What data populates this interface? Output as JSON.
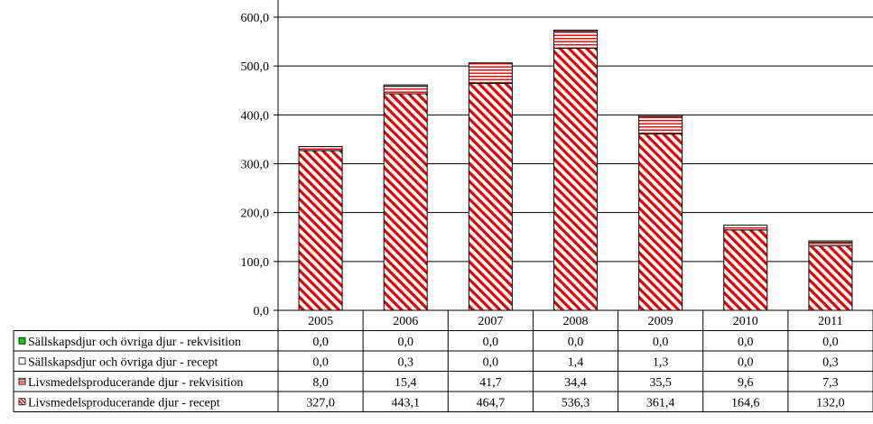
{
  "chart_data": {
    "type": "bar",
    "stacked": true,
    "categories": [
      "2005",
      "2006",
      "2007",
      "2008",
      "2009",
      "2010",
      "2011"
    ],
    "ylim": [
      0,
      600
    ],
    "yticks": [
      "0,0",
      "100,0",
      "200,0",
      "300,0",
      "400,0",
      "500,0",
      "600,0"
    ],
    "grid": true,
    "legend": "data-table-left",
    "series": [
      {
        "name": "Livsmedelsproducerande djur - recept",
        "values": [
          327.0,
          443.1,
          464.7,
          536.3,
          361.4,
          164.6,
          132.0
        ],
        "labels": [
          "327,0",
          "443,1",
          "464,7",
          "536,3",
          "361,4",
          "164,6",
          "132,0"
        ],
        "color": "#e00000",
        "pattern": "diagonal-hatch"
      },
      {
        "name": "Livsmedelsproducerande djur - rekvisition",
        "values": [
          8.0,
          15.4,
          41.7,
          34.4,
          35.5,
          9.6,
          7.3
        ],
        "labels": [
          "8,0",
          "15,4",
          "41,7",
          "34,4",
          "35,5",
          "9,6",
          "7,3"
        ],
        "color": "#e00000",
        "pattern": "horizontal-hatch"
      },
      {
        "name": "Sällskapsdjur och övriga djur - recept",
        "values": [
          0.0,
          0.3,
          0.0,
          1.4,
          1.3,
          0.0,
          0.3
        ],
        "labels": [
          "0,0",
          "0,3",
          "0,0",
          "1,4",
          "1,3",
          "0,0",
          "0,3"
        ],
        "color": "#000000",
        "pattern": "solid-outline"
      },
      {
        "name": "Sällskapsdjur och övriga djur - rekvisition",
        "values": [
          0.0,
          0.0,
          0.0,
          0.0,
          0.0,
          0.0,
          0.0
        ],
        "labels": [
          "0,0",
          "0,0",
          "0,0",
          "0,0",
          "0,0",
          "0,0",
          "0,0"
        ],
        "color": "#22bb22",
        "pattern": "solid"
      }
    ]
  }
}
